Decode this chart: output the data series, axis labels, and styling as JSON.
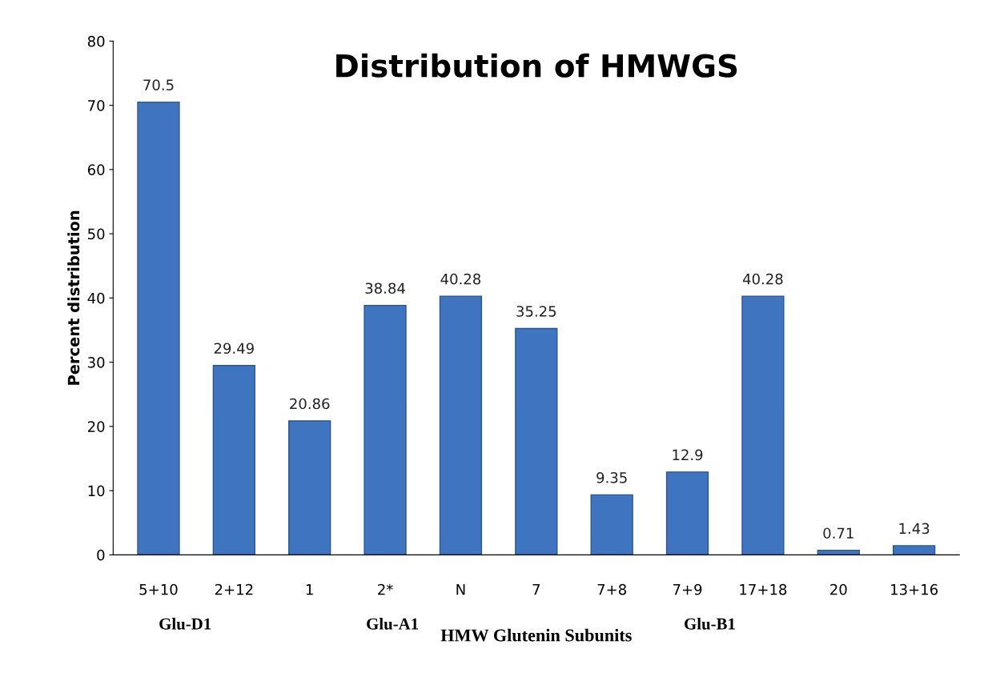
{
  "chart_data": {
    "type": "bar",
    "title": "Distribution of HMWGS",
    "xlabel": "HMW Glutenin Subunits",
    "ylabel": "Percent distribution",
    "categories": [
      "5+10",
      "2+12",
      "1",
      "2*",
      "N",
      "7",
      "7+8",
      "7+9",
      "17+18",
      "20",
      "13+16"
    ],
    "values": [
      70.5,
      29.49,
      20.86,
      38.84,
      40.28,
      35.25,
      9.35,
      12.9,
      40.28,
      0.71,
      1.43
    ],
    "value_labels": [
      "70.5",
      "29.49",
      "20.86",
      "38.84",
      "40.28",
      "35.25",
      "9.35",
      "12.9",
      "40.28",
      "0.71",
      "1.43"
    ],
    "color": "#3f74c0",
    "ylim": [
      0,
      80
    ],
    "yticks": [
      0,
      10,
      20,
      30,
      40,
      50,
      60,
      70,
      80
    ],
    "grid": false,
    "legend": false,
    "annotations": [
      "Glu-D1",
      "Glu-A1",
      "Glu-B1"
    ]
  }
}
